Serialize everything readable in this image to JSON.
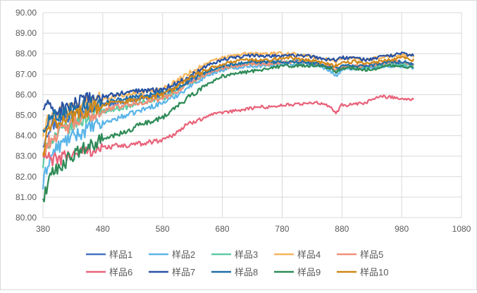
{
  "chart_data": {
    "type": "line",
    "title": "",
    "xlabel": "",
    "ylabel": "",
    "xlim": [
      380,
      1080
    ],
    "ylim": [
      80,
      90
    ],
    "x_ticks": [
      "380",
      "480",
      "580",
      "680",
      "780",
      "880",
      "980",
      "1080"
    ],
    "y_ticks": [
      "80.00",
      "81.00",
      "82.00",
      "83.00",
      "84.00",
      "85.00",
      "86.00",
      "87.00",
      "88.00",
      "89.00",
      "90.00"
    ],
    "grid": true,
    "legend_position": "bottom",
    "x": [
      380,
      385,
      390,
      400,
      420,
      440,
      460,
      480,
      500,
      520,
      540,
      560,
      580,
      600,
      620,
      640,
      660,
      680,
      700,
      720,
      740,
      760,
      780,
      800,
      820,
      840,
      860,
      870,
      880,
      900,
      920,
      940,
      960,
      980,
      1000
    ],
    "series": [
      {
        "name": "样品1",
        "color": "#4472C4",
        "values": [
          83.6,
          84.1,
          84.4,
          84.6,
          84.9,
          85.1,
          85.3,
          85.5,
          85.6,
          85.7,
          85.8,
          85.9,
          86.0,
          86.3,
          86.6,
          86.9,
          87.1,
          87.3,
          87.4,
          87.5,
          87.6,
          87.6,
          87.6,
          87.6,
          87.6,
          87.5,
          87.4,
          87.1,
          87.3,
          87.3,
          87.3,
          87.4,
          87.5,
          87.5,
          87.4
        ]
      },
      {
        "name": "样品2",
        "color": "#5BB5E8",
        "values": [
          81.5,
          82.3,
          82.8,
          83.3,
          83.8,
          84.1,
          84.4,
          84.6,
          84.8,
          85.0,
          85.2,
          85.4,
          85.6,
          85.9,
          86.3,
          86.7,
          87.0,
          87.2,
          87.3,
          87.4,
          87.4,
          87.4,
          87.5,
          87.5,
          87.5,
          87.4,
          87.2,
          86.9,
          87.2,
          87.3,
          87.3,
          87.3,
          87.4,
          87.4,
          87.3
        ]
      },
      {
        "name": "样品3",
        "color": "#5ECBA4",
        "values": [
          82.5,
          83.2,
          83.7,
          84.0,
          84.4,
          84.7,
          85.0,
          85.2,
          85.3,
          85.4,
          85.6,
          85.7,
          85.8,
          86.1,
          86.5,
          86.8,
          87.1,
          87.3,
          87.4,
          87.5,
          87.5,
          87.5,
          87.6,
          87.6,
          87.6,
          87.5,
          87.3,
          87.1,
          87.3,
          87.3,
          87.3,
          87.4,
          87.5,
          87.5,
          87.4
        ]
      },
      {
        "name": "样品4",
        "color": "#F7B55B",
        "values": [
          84.0,
          84.5,
          84.8,
          85.0,
          85.3,
          85.5,
          85.7,
          85.8,
          85.9,
          86.0,
          86.1,
          86.2,
          86.3,
          86.6,
          87.0,
          87.3,
          87.6,
          87.8,
          87.9,
          88.0,
          88.0,
          88.0,
          88.0,
          88.0,
          87.9,
          87.8,
          87.7,
          87.6,
          87.8,
          87.8,
          87.7,
          87.8,
          87.9,
          87.9,
          87.9
        ]
      },
      {
        "name": "样品5",
        "color": "#F0907A",
        "values": [
          83.0,
          83.4,
          83.7,
          84.0,
          84.4,
          84.7,
          85.0,
          85.2,
          85.4,
          85.5,
          85.6,
          85.7,
          85.8,
          86.1,
          86.5,
          86.8,
          87.1,
          87.3,
          87.4,
          87.5,
          87.5,
          87.5,
          87.6,
          87.6,
          87.6,
          87.5,
          87.4,
          87.2,
          87.4,
          87.4,
          87.4,
          87.5,
          87.6,
          87.6,
          87.5
        ]
      },
      {
        "name": "样品6",
        "color": "#E8637A",
        "values": [
          83.0,
          82.9,
          82.9,
          82.8,
          83.0,
          83.2,
          83.3,
          83.4,
          83.5,
          83.5,
          83.6,
          83.7,
          83.8,
          84.1,
          84.5,
          84.8,
          85.0,
          85.1,
          85.2,
          85.3,
          85.4,
          85.4,
          85.5,
          85.5,
          85.6,
          85.6,
          85.4,
          85.1,
          85.5,
          85.5,
          85.6,
          85.9,
          85.9,
          85.8,
          85.8
        ]
      },
      {
        "name": "样品7",
        "color": "#2952A3",
        "values": [
          85.2,
          85.7,
          85.3,
          85.2,
          85.4,
          85.6,
          85.8,
          85.9,
          86.0,
          86.1,
          86.2,
          86.2,
          86.3,
          86.5,
          86.8,
          87.2,
          87.5,
          87.7,
          87.8,
          87.9,
          87.9,
          87.9,
          87.9,
          87.9,
          87.9,
          87.8,
          87.7,
          87.7,
          87.8,
          87.8,
          87.7,
          87.8,
          87.9,
          88.0,
          87.9
        ]
      },
      {
        "name": "样品8",
        "color": "#1F6FA8",
        "values": [
          84.2,
          84.6,
          84.8,
          85.0,
          85.2,
          85.4,
          85.5,
          85.6,
          85.7,
          85.8,
          85.9,
          86.0,
          86.1,
          86.3,
          86.6,
          86.9,
          87.2,
          87.4,
          87.5,
          87.6,
          87.6,
          87.6,
          87.6,
          87.6,
          87.6,
          87.5,
          87.4,
          87.3,
          87.4,
          87.4,
          87.4,
          87.5,
          87.6,
          87.6,
          87.5
        ]
      },
      {
        "name": "样品9",
        "color": "#2E8B57",
        "values": [
          80.8,
          81.4,
          81.8,
          82.3,
          82.8,
          83.2,
          83.5,
          83.8,
          84.0,
          84.2,
          84.5,
          84.7,
          84.9,
          85.3,
          85.8,
          86.2,
          86.6,
          86.9,
          87.0,
          87.1,
          87.2,
          87.3,
          87.4,
          87.4,
          87.4,
          87.4,
          87.3,
          87.1,
          87.3,
          87.3,
          87.2,
          87.3,
          87.4,
          87.4,
          87.3
        ]
      },
      {
        "name": "样品10",
        "color": "#D08818",
        "values": [
          83.0,
          83.9,
          84.3,
          84.6,
          84.9,
          85.1,
          85.3,
          85.5,
          85.6,
          85.7,
          85.8,
          85.9,
          86.0,
          86.3,
          86.7,
          87.0,
          87.3,
          87.5,
          87.6,
          87.7,
          87.7,
          87.7,
          87.8,
          87.8,
          87.7,
          87.6,
          87.5,
          87.4,
          87.6,
          87.6,
          87.5,
          87.6,
          87.7,
          87.8,
          87.7
        ]
      }
    ]
  }
}
